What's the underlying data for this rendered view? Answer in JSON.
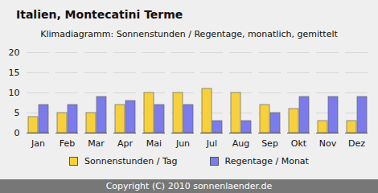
{
  "chart_data": {
    "type": "bar",
    "title": "Italien, Montecatini Terme",
    "subtitle": "Klimadiagramm: Sonnenstunden / Regentage, monatlich, gemittelt",
    "footer": "Copyright (C) 2010 sonnenlaender.de",
    "categories": [
      "Jan",
      "Feb",
      "Mar",
      "Apr",
      "Mai",
      "Jun",
      "Jul",
      "Aug",
      "Sep",
      "Okt",
      "Nov",
      "Dez"
    ],
    "series": [
      {
        "name": "Sonnenstunden / Tag",
        "color": "#f7d13c",
        "values": [
          4,
          5,
          5,
          7,
          10,
          10,
          11,
          10,
          7,
          6,
          3,
          3
        ]
      },
      {
        "name": "Regentage / Monat",
        "color": "#7b7bee",
        "values": [
          7,
          7,
          9,
          8,
          7,
          7,
          3,
          3,
          5,
          9,
          9,
          9
        ]
      }
    ],
    "ylim": [
      0,
      20
    ],
    "yticks": [
      0,
      5,
      10,
      15,
      20
    ],
    "grid": true,
    "legend": "bottom"
  }
}
